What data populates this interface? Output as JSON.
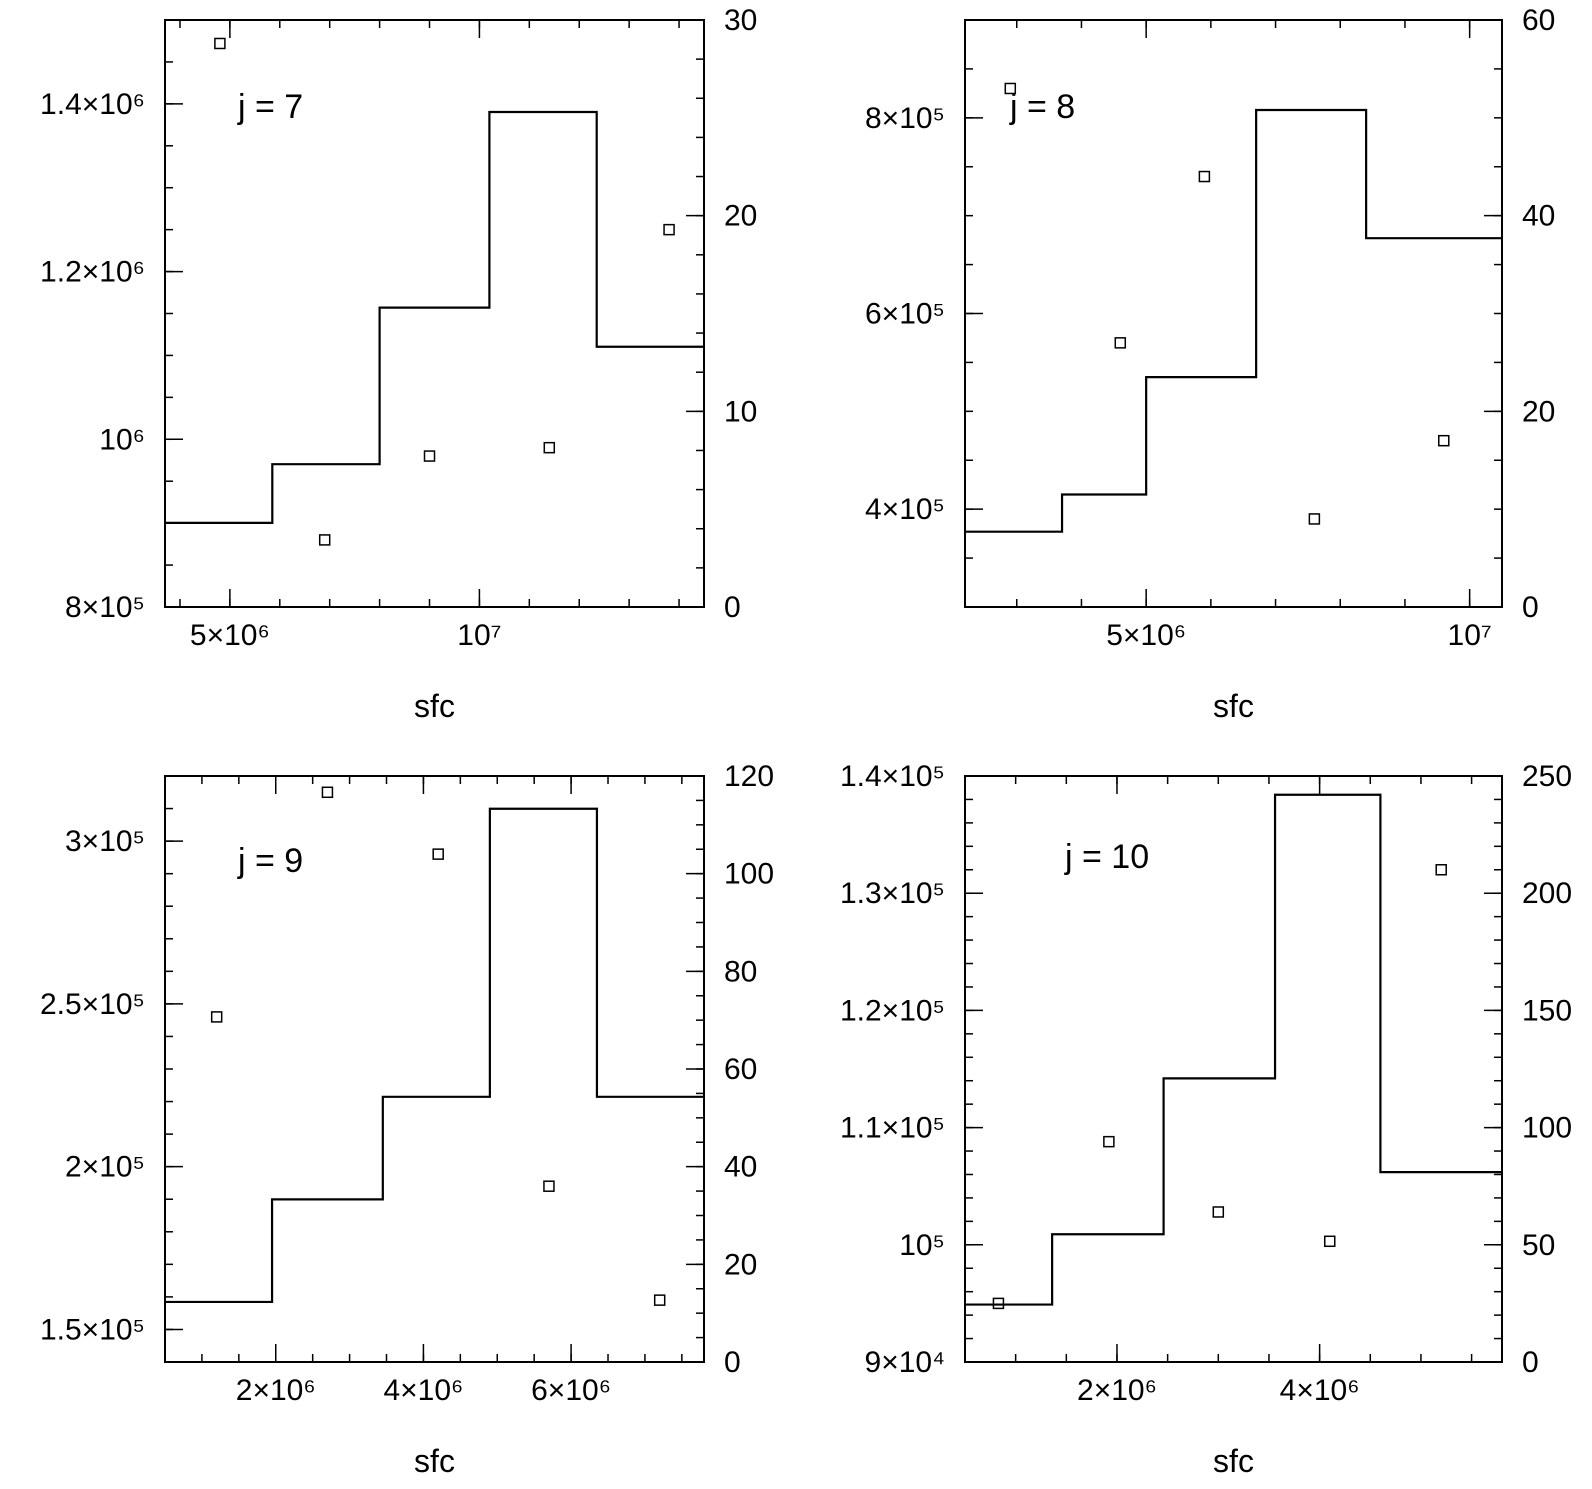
{
  "chart_data": [
    {
      "type": "scatter",
      "panel_label": "j = 7",
      "xlabel": "sfc",
      "xlim": [
        3700000.0,
        14500000.0
      ],
      "xticks": {
        "major": [
          {
            "value": 5000000.0,
            "label": "5×10⁶"
          },
          {
            "value": 10000000.0,
            "label": "10⁷"
          }
        ],
        "minor_step": 1000000.0
      },
      "ylim": [
        800000.0,
        1500000.0
      ],
      "yticks": {
        "major": [
          {
            "value": 800000.0,
            "label": "8×10⁵"
          },
          {
            "value": 1000000.0,
            "label": "10⁶"
          },
          {
            "value": 1200000.0,
            "label": "1.2×10⁶"
          },
          {
            "value": 1400000.0,
            "label": "1.4×10⁶"
          }
        ],
        "minor_step": 50000.0
      },
      "y2lim": [
        0,
        30
      ],
      "y2ticks": {
        "major": [
          {
            "value": 0,
            "label": "0"
          },
          {
            "value": 10,
            "label": "10"
          },
          {
            "value": 20,
            "label": "20"
          },
          {
            "value": 30,
            "label": "30"
          }
        ],
        "minor_step": 2
      },
      "points": [
        [
          4800000.0,
          1472000.0
        ],
        [
          6900000.0,
          880000.0
        ],
        [
          9000000.0,
          980000.0
        ],
        [
          11400000.0,
          990000.0
        ],
        [
          13800000.0,
          1250000.0
        ]
      ],
      "histogram": {
        "edges": [
          3700000.0,
          5850000.0,
          8000000.0,
          10200000.0,
          12350000.0,
          14500000.0
        ],
        "counts": [
          4.3,
          7.3,
          15.3,
          25.3,
          13.3
        ]
      }
    },
    {
      "type": "scatter",
      "panel_label": "j = 8",
      "xlabel": "sfc",
      "xlim": [
        2200000.0,
        10500000.0
      ],
      "xticks": {
        "major": [
          {
            "value": 5000000.0,
            "label": "5×10⁶"
          },
          {
            "value": 10000000.0,
            "label": "10⁷"
          }
        ],
        "minor_step": 1000000.0
      },
      "ylim": [
        300000.0,
        900000.0
      ],
      "yticks": {
        "major": [
          {
            "value": 400000.0,
            "label": "4×10⁵"
          },
          {
            "value": 600000.0,
            "label": "6×10⁵"
          },
          {
            "value": 800000.0,
            "label": "8×10⁵"
          }
        ],
        "minor_step": 50000.0
      },
      "y2lim": [
        0,
        60
      ],
      "y2ticks": {
        "major": [
          {
            "value": 0,
            "label": "0"
          },
          {
            "value": 20,
            "label": "20"
          },
          {
            "value": 40,
            "label": "40"
          },
          {
            "value": 60,
            "label": "60"
          }
        ],
        "minor_step": 5
      },
      "points": [
        [
          2900000.0,
          830000.0
        ],
        [
          4600000.0,
          570000.0
        ],
        [
          5900000.0,
          740000.0
        ],
        [
          7600000.0,
          390000.0
        ],
        [
          9600000.0,
          470000.0
        ]
      ],
      "histogram": {
        "edges": [
          2200000.0,
          3700000.0,
          5000000.0,
          6700000.0,
          8400000.0,
          10500000.0
        ],
        "counts": [
          7.7,
          11.5,
          23.5,
          50.8,
          37.7
        ]
      }
    },
    {
      "type": "scatter",
      "panel_label": "j = 9",
      "xlabel": "sfc",
      "xlim": [
        500000.0,
        7800000.0
      ],
      "xticks": {
        "major": [
          {
            "value": 2000000.0,
            "label": "2×10⁶"
          },
          {
            "value": 4000000.0,
            "label": "4×10⁶"
          },
          {
            "value": 6000000.0,
            "label": "6×10⁶"
          }
        ],
        "minor_step": 500000.0
      },
      "ylim": [
        140000.0,
        320000.0
      ],
      "yticks": {
        "major": [
          {
            "value": 150000.0,
            "label": "1.5×10⁵"
          },
          {
            "value": 200000.0,
            "label": "2×10⁵"
          },
          {
            "value": 250000.0,
            "label": "2.5×10⁵"
          },
          {
            "value": 300000.0,
            "label": "3×10⁵"
          }
        ],
        "minor_step": 10000.0
      },
      "y2lim": [
        0,
        120
      ],
      "y2ticks": {
        "major": [
          {
            "value": 0,
            "label": "0"
          },
          {
            "value": 20,
            "label": "20"
          },
          {
            "value": 40,
            "label": "40"
          },
          {
            "value": 60,
            "label": "60"
          },
          {
            "value": 80,
            "label": "80"
          },
          {
            "value": 100,
            "label": "100"
          },
          {
            "value": 120,
            "label": "120"
          }
        ],
        "minor_step": 5
      },
      "points": [
        [
          1200000.0,
          246000.0
        ],
        [
          2700000.0,
          315000.0
        ],
        [
          4200000.0,
          296000.0
        ],
        [
          5700000.0,
          194000.0
        ],
        [
          7200000.0,
          159000.0
        ]
      ],
      "histogram": {
        "edges": [
          500000.0,
          1950000.0,
          3450000.0,
          4900000.0,
          6350000.0,
          7800000.0
        ],
        "counts": [
          12.3,
          33.3,
          54.3,
          113.3,
          54.3
        ]
      }
    },
    {
      "type": "scatter",
      "panel_label": "j = 10",
      "xlabel": "sfc",
      "xlim": [
        500000.0,
        5800000.0
      ],
      "xticks": {
        "major": [
          {
            "value": 2000000.0,
            "label": "2×10⁶"
          },
          {
            "value": 4000000.0,
            "label": "4×10⁶"
          }
        ],
        "minor_step": 500000.0
      },
      "ylim": [
        90000.0,
        140000.0
      ],
      "yticks": {
        "major": [
          {
            "value": 90000.0,
            "label": "9×10⁴"
          },
          {
            "value": 100000.0,
            "label": "10⁵"
          },
          {
            "value": 110000.0,
            "label": "1.1×10⁵"
          },
          {
            "value": 120000.0,
            "label": "1.2×10⁵"
          },
          {
            "value": 130000.0,
            "label": "1.3×10⁵"
          },
          {
            "value": 140000.0,
            "label": "1.4×10⁵"
          }
        ],
        "minor_step": 2000.0
      },
      "y2lim": [
        0,
        250
      ],
      "y2ticks": {
        "major": [
          {
            "value": 0,
            "label": "0"
          },
          {
            "value": 50,
            "label": "50"
          },
          {
            "value": 100,
            "label": "100"
          },
          {
            "value": 150,
            "label": "150"
          },
          {
            "value": 200,
            "label": "200"
          },
          {
            "value": 250,
            "label": "250"
          }
        ],
        "minor_step": 10
      },
      "points": [
        [
          830000.0,
          95000.0
        ],
        [
          1920000.0,
          108800.0
        ],
        [
          3000000.0,
          102800.0
        ],
        [
          4100000.0,
          100300.0
        ],
        [
          5200000.0,
          132000.0
        ]
      ],
      "histogram": {
        "edges": [
          500000.0,
          1360000.0,
          2460000.0,
          3560000.0,
          4600000.0,
          5800000.0
        ],
        "counts": [
          24.5,
          54.5,
          121.0,
          242.0,
          81.0
        ]
      }
    }
  ]
}
